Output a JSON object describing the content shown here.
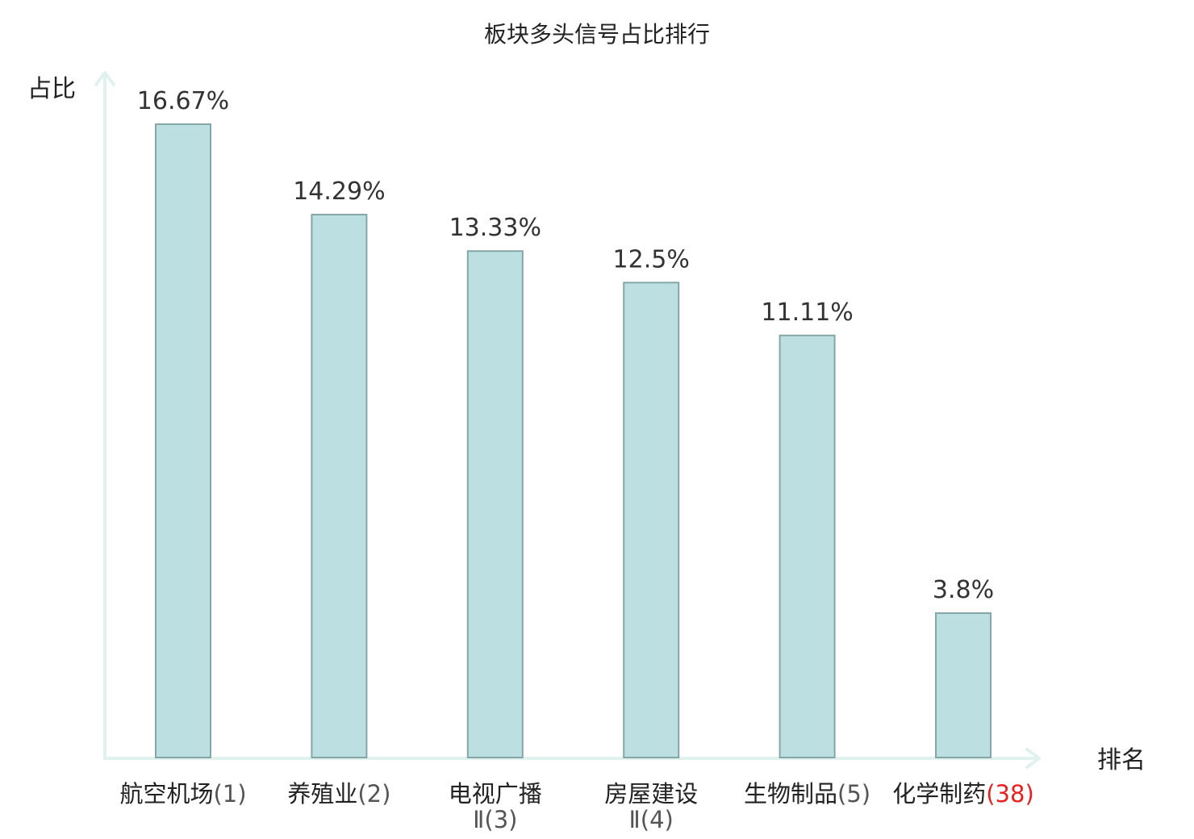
{
  "chart_data": {
    "type": "bar",
    "title": "板块多头信号占比排行",
    "xlabel": "排名",
    "ylabel": "占比",
    "ylim": [
      0,
      17.5
    ],
    "grid": false,
    "categories": [
      {
        "name": "航空机场",
        "rank": "(1)"
      },
      {
        "name": "养殖业",
        "rank": "(2)"
      },
      {
        "name": "电视广播",
        "name_line2": "Ⅱ",
        "rank": "(3)"
      },
      {
        "name": "房屋建设",
        "name_line2": "Ⅱ",
        "rank": "(4)"
      },
      {
        "name": "生物制品",
        "rank": "(5)"
      },
      {
        "name": "化学制药",
        "rank": "(38)",
        "highlight": true
      }
    ],
    "values": [
      16.67,
      14.29,
      13.33,
      12.5,
      11.11,
      3.8
    ],
    "value_labels": [
      "16.67%",
      "14.29%",
      "13.33%",
      "12.5%",
      "11.11%",
      "3.8%"
    ]
  },
  "colors": {
    "bar_fill": "#bce0e2",
    "bar_stroke": "#85a6a7",
    "axis": "#e0f1ee",
    "highlight": "#e8201e",
    "text": "#222222"
  }
}
